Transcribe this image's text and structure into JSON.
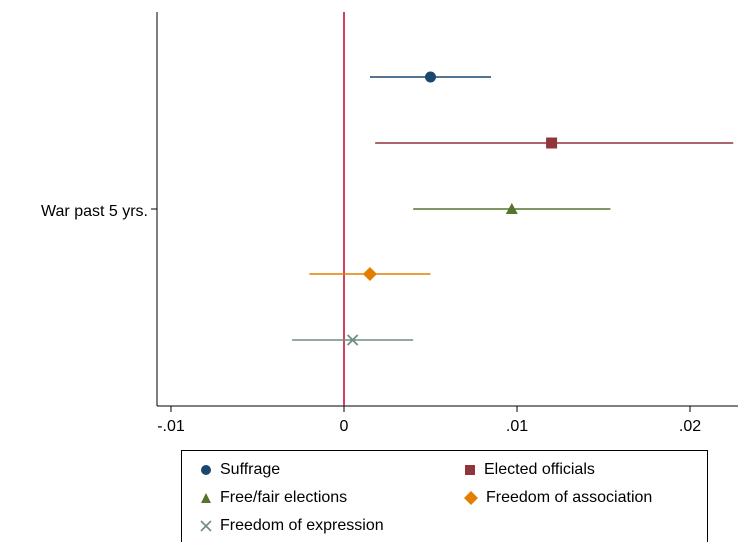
{
  "chart_data": {
    "type": "scatter",
    "subtype": "coefficient-plot",
    "title": "",
    "xlabel": "",
    "ylabel": "",
    "y_category": "War past 5 yrs.",
    "xlim": [
      -0.011,
      0.0225
    ],
    "x_ticks": [
      {
        "value": -0.01,
        "label": "-.01"
      },
      {
        "value": 0,
        "label": "0"
      },
      {
        "value": 0.01,
        "label": ".01"
      },
      {
        "value": 0.02,
        "label": ".02"
      }
    ],
    "reference_line": {
      "x": 0,
      "color": "#c0002a"
    },
    "grid": false,
    "legend_position": "bottom",
    "series": [
      {
        "name": "Suffrage",
        "estimate": 0.005,
        "ci": [
          0.0015,
          0.0085
        ],
        "color": "#1a476f",
        "marker": "circle"
      },
      {
        "name": "Elected officials",
        "estimate": 0.012,
        "ci": [
          0.0018,
          0.0225
        ],
        "color": "#90353b",
        "marker": "square"
      },
      {
        "name": "Free/fair elections",
        "estimate": 0.0097,
        "ci": [
          0.004,
          0.0154
        ],
        "color": "#55752f",
        "marker": "triangle"
      },
      {
        "name": "Freedom of association",
        "estimate": 0.0015,
        "ci": [
          -0.002,
          0.005
        ],
        "color": "#e37e00",
        "marker": "diamond"
      },
      {
        "name": "Freedom of expression",
        "estimate": 0.0005,
        "ci": [
          -0.003,
          0.004
        ],
        "color": "#6e8e84",
        "marker": "x"
      }
    ]
  }
}
